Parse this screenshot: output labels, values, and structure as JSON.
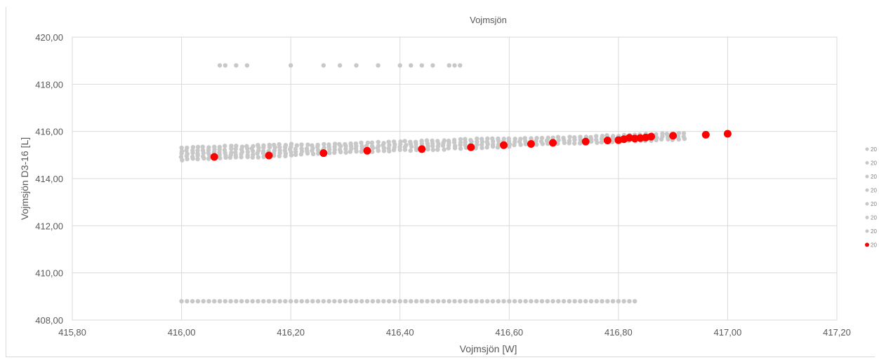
{
  "chart_data": {
    "type": "scatter",
    "title": "Vojmsjön",
    "xlabel": "Vojmsjön [W]",
    "ylabel": "Vojmsjön D3-16 [L]",
    "xlim": [
      415.8,
      417.2
    ],
    "ylim": [
      408.0,
      420.0
    ],
    "x_ticks": [
      "415,80",
      "416,00",
      "416,20",
      "416,40",
      "416,60",
      "416,80",
      "417,00",
      "417,20"
    ],
    "y_ticks": [
      "408,00",
      "410,00",
      "412,00",
      "414,00",
      "416,00",
      "418,00",
      "420,00"
    ],
    "grid": true,
    "legend_position": "right",
    "series_colors": {
      "gray": "#c8c8c8",
      "red": "#ff0000"
    },
    "legend_labels": [
      "20",
      "20",
      "20",
      "20",
      "20",
      "20",
      "20",
      "20"
    ],
    "top_outliers_x": [
      416.07,
      416.08,
      416.1,
      416.12,
      416.2,
      416.26,
      416.29,
      416.32,
      416.36,
      416.4,
      416.42,
      416.44,
      416.46,
      416.49,
      416.5,
      416.51
    ],
    "top_outliers_y": 418.8,
    "bottom_outliers_range": [
      416.0,
      416.83
    ],
    "bottom_outliers_y": 408.8,
    "gray_band": {
      "x_range": [
        416.0,
        416.92
      ],
      "y_start": 415.05,
      "y_end": 415.8
    },
    "red_points": [
      {
        "x": 416.06,
        "y": 414.92
      },
      {
        "x": 416.16,
        "y": 414.98
      },
      {
        "x": 416.26,
        "y": 415.08
      },
      {
        "x": 416.34,
        "y": 415.18
      },
      {
        "x": 416.44,
        "y": 415.25
      },
      {
        "x": 416.53,
        "y": 415.33
      },
      {
        "x": 416.59,
        "y": 415.42
      },
      {
        "x": 416.64,
        "y": 415.47
      },
      {
        "x": 416.68,
        "y": 415.52
      },
      {
        "x": 416.74,
        "y": 415.57
      },
      {
        "x": 416.78,
        "y": 415.62
      },
      {
        "x": 416.8,
        "y": 415.63
      },
      {
        "x": 416.81,
        "y": 415.67
      },
      {
        "x": 416.82,
        "y": 415.73
      },
      {
        "x": 416.83,
        "y": 415.7
      },
      {
        "x": 416.84,
        "y": 415.72
      },
      {
        "x": 416.85,
        "y": 415.74
      },
      {
        "x": 416.86,
        "y": 415.78
      },
      {
        "x": 416.9,
        "y": 415.82
      },
      {
        "x": 416.96,
        "y": 415.86
      },
      {
        "x": 417.0,
        "y": 415.9
      }
    ]
  }
}
